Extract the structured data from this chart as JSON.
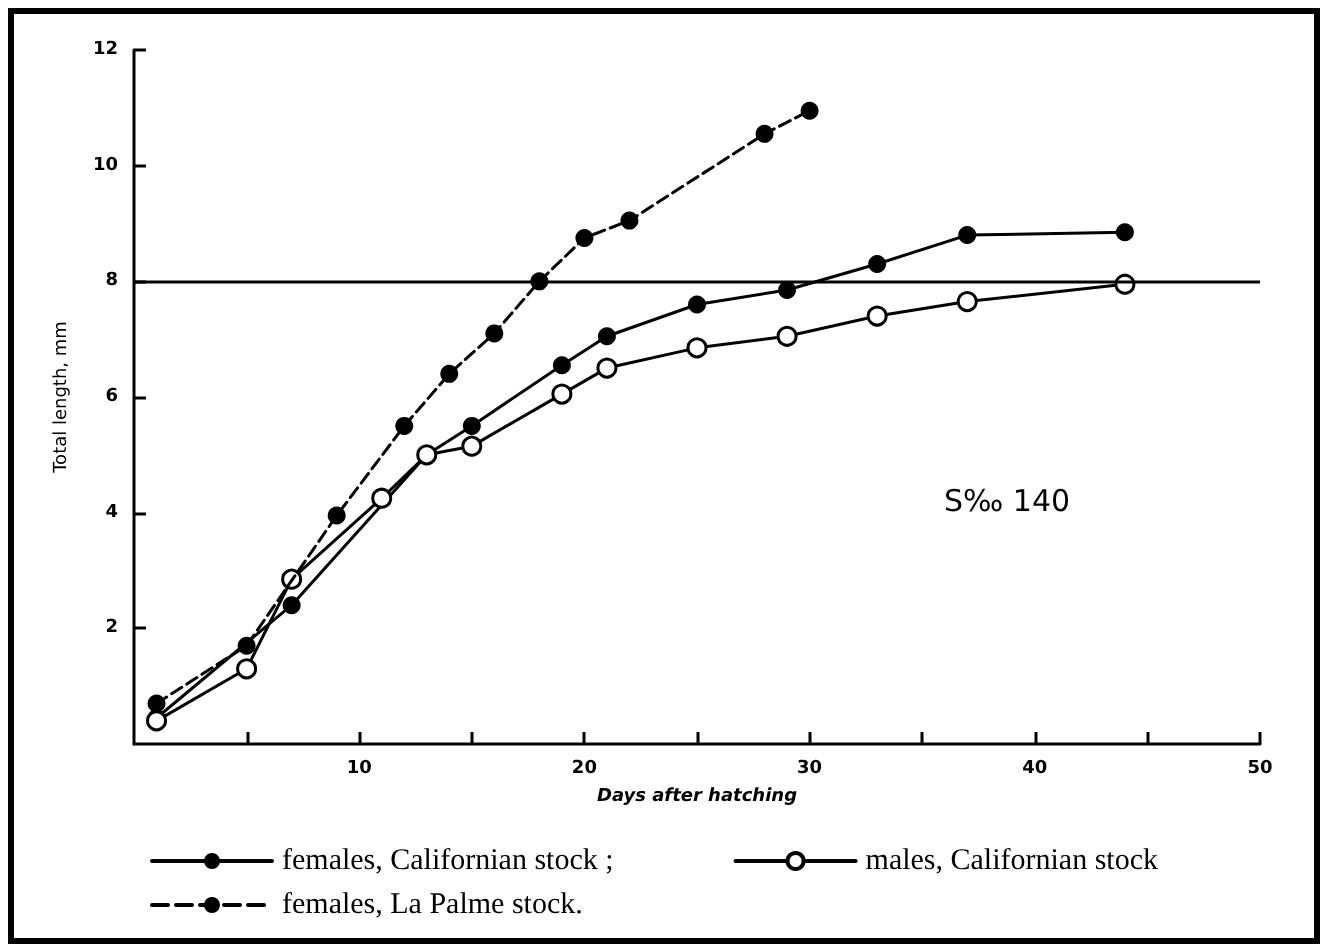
{
  "chart_data": {
    "type": "line",
    "xlabel": "Days after hatching",
    "ylabel": "Total length, mm",
    "xlim": [
      0,
      50
    ],
    "xticks": [
      {
        "value": 5,
        "label": null
      },
      10,
      {
        "value": 15,
        "label": null
      },
      20,
      {
        "value": 25,
        "label": null
      },
      30,
      {
        "value": 35,
        "label": null
      },
      40,
      {
        "value": 45,
        "label": null
      },
      50
    ],
    "ylim": [
      0,
      12
    ],
    "yticks": [
      2,
      4,
      6,
      8,
      10,
      12
    ],
    "grid": false,
    "legend": "bottom",
    "marker": "circle",
    "ref_lines": [
      {
        "axis": "y",
        "value": 8,
        "color": "#000000",
        "line_style": "solid"
      }
    ],
    "annotations": [
      "S‰ 140"
    ],
    "series": [
      {
        "name": "females, Californian stock ;",
        "color": "#000000",
        "line_style": "solid",
        "x": [
          1,
          7,
          13,
          15,
          19,
          21,
          25,
          29,
          33,
          37,
          44
        ],
        "values": [
          0.45,
          2.4,
          5.0,
          5.5,
          6.55,
          7.05,
          7.6,
          7.85,
          8.3,
          8.8,
          8.85
        ]
      },
      {
        "name": "males, Californian stock",
        "color": "#000000",
        "colors": [
          "#ffffff",
          "#ffffff",
          "#ffffff",
          "#ffffff",
          "#ffffff",
          "#ffffff",
          "#ffffff",
          "#ffffff",
          "#ffffff",
          "#ffffff",
          "#ffffff",
          "#ffffff",
          "#ffffff"
        ],
        "line_style": "solid",
        "x": [
          1,
          5,
          7,
          11,
          13,
          15,
          19,
          21,
          25,
          29,
          33,
          37,
          44
        ],
        "values": [
          0.4,
          1.3,
          2.85,
          4.25,
          5.0,
          5.15,
          6.05,
          6.5,
          6.85,
          7.05,
          7.4,
          7.65,
          7.95
        ]
      },
      {
        "name": "females, La Palme stock.",
        "color": "#000000",
        "line_style": "dashed",
        "x": [
          1,
          5,
          9,
          12,
          14,
          16,
          18,
          20,
          22,
          28,
          30
        ],
        "values": [
          0.7,
          1.7,
          3.95,
          5.5,
          6.4,
          7.1,
          8.0,
          8.75,
          9.05,
          10.55,
          10.95
        ]
      }
    ]
  }
}
